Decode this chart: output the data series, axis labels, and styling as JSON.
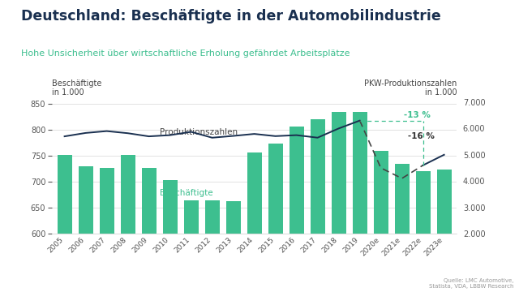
{
  "title": "Deutschland: Beschäftigte in der Automobilindustrie",
  "subtitle": "Hohe Unsicherheit über wirtschaftliche Erholung gefährdet Arbeitsplätze",
  "source": "Quelle: LMC Automotive,\nStatista, VDA, LBBW Research",
  "years": [
    "2005",
    "2006",
    "2007",
    "2008",
    "2009",
    "2010",
    "2011",
    "2012",
    "2013",
    "2014",
    "2015",
    "2016",
    "2017",
    "2018",
    "2019",
    "2020e",
    "2021e",
    "2022e",
    "2023e"
  ],
  "beschaeftigte": [
    751,
    730,
    727,
    751,
    726,
    703,
    664,
    664,
    663,
    757,
    774,
    807,
    820,
    834,
    834,
    760,
    734,
    721,
    723
  ],
  "produktionszahlen": [
    5700,
    5830,
    5900,
    5820,
    5700,
    5746,
    5872,
    5649,
    5717,
    5793,
    5709,
    5746,
    5650,
    6000,
    6300,
    4500,
    4100,
    4600,
    5000
  ],
  "bar_color": "#3dbf8f",
  "line_color": "#1a3050",
  "teal_color": "#3dbf8f",
  "title_color": "#1a3050",
  "subtitle_color": "#3dbf8f",
  "bg_color": "#ffffff",
  "ylim_left": [
    600,
    870
  ],
  "ylim_right": [
    2000,
    7333
  ],
  "yticks_left": [
    600,
    650,
    700,
    750,
    800,
    850
  ],
  "yticks_right": [
    2000,
    3000,
    4000,
    5000,
    6000,
    7000
  ],
  "annotation_13": "-13 %",
  "annotation_16": "-16 %",
  "label_beschaeftigte": "Beschäftigte",
  "label_produktion": "Produktionszahlen",
  "ylabel_left1": "Beschäftigte",
  "ylabel_left2": "in 1.000",
  "ylabel_right1": "PKW-Produktionszahlen",
  "ylabel_right2": "in 1.000"
}
